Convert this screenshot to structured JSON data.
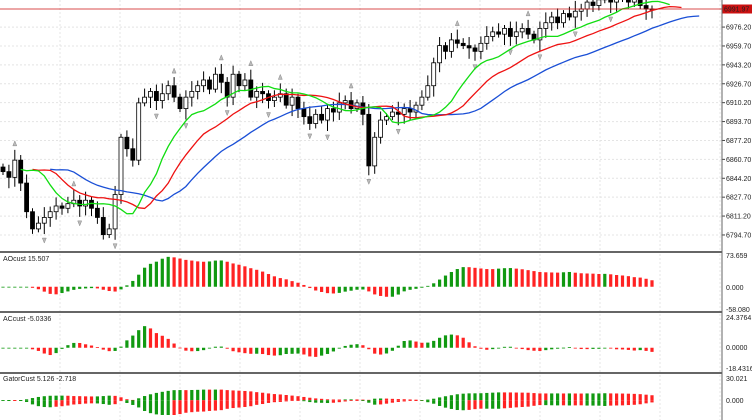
{
  "chart_data": {
    "type": "candlestick",
    "symbol_price_label": "6991.97",
    "colors": {
      "bull": "#ffffff",
      "bear": "#000000",
      "jaw": "#1a4fd6",
      "teeth": "#ee1111",
      "lips": "#11dd11",
      "up_bar": "#119911",
      "down_bar": "#ff2222",
      "current_price": "#cc1111"
    },
    "alligator": {
      "jaw_period": 13,
      "jaw_shift": 8,
      "teeth_period": 8,
      "teeth_shift": 5,
      "lips_period": 5,
      "lips_shift": 3
    },
    "close": [
      6850,
      6845,
      6860,
      6840,
      6815,
      6800,
      6805,
      6810,
      6815,
      6820,
      6818,
      6822,
      6825,
      6820,
      6825,
      6818,
      6810,
      6795,
      6800,
      6830,
      6880,
      6870,
      6860,
      6910,
      6915,
      6920,
      6912,
      6918,
      6925,
      6915,
      6905,
      6915,
      6920,
      6925,
      6930,
      6922,
      6935,
      6928,
      6915,
      6935,
      6925,
      6930,
      6915,
      6920,
      6918,
      6912,
      6915,
      6918,
      6908,
      6915,
      6905,
      6898,
      6892,
      6900,
      6895,
      6905,
      6902,
      6910,
      6912,
      6905,
      6910,
      6900,
      6855,
      6880,
      6895,
      6898,
      6902,
      6900,
      6905,
      6902,
      6908,
      6915,
      6925,
      6945,
      6960,
      6955,
      6965,
      6962,
      6960,
      6958,
      6955,
      6962,
      6968,
      6972,
      6970,
      6975,
      6968,
      6972,
      6975,
      6970,
      6965,
      6975,
      6980,
      6985,
      6980,
      6988,
      6985,
      6990,
      6992,
      6998,
      6995,
      7000,
      7002,
      6998,
      7005,
      7005,
      6998,
      7002,
      6995,
      6992,
      6992
    ],
    "price_axis": {
      "ticks": [
        "6976.20",
        "6959.70",
        "6943.20",
        "6926.70",
        "6910.20",
        "6893.70",
        "6877.20",
        "6860.70",
        "6844.20",
        "6827.70",
        "6811.20",
        "6794.70"
      ],
      "range": [
        6790,
        7002
      ]
    },
    "panes": [
      {
        "title": "AOcust 15.507",
        "max_label": "73.659",
        "zero_label": "0.000",
        "min_label": "-58.080",
        "range": [
          -58.08,
          73.659
        ]
      },
      {
        "title": "ACcust -5.0336",
        "max_label": "24.3764",
        "zero_label": "0.0000",
        "min_label": "-18.4316",
        "range": [
          -18.4316,
          24.3764
        ]
      },
      {
        "title": "GatorCust 5.126 -2.718",
        "max_label": "30.021",
        "zero_label": "0.000",
        "range": [
          -20,
          30.021
        ]
      }
    ]
  }
}
